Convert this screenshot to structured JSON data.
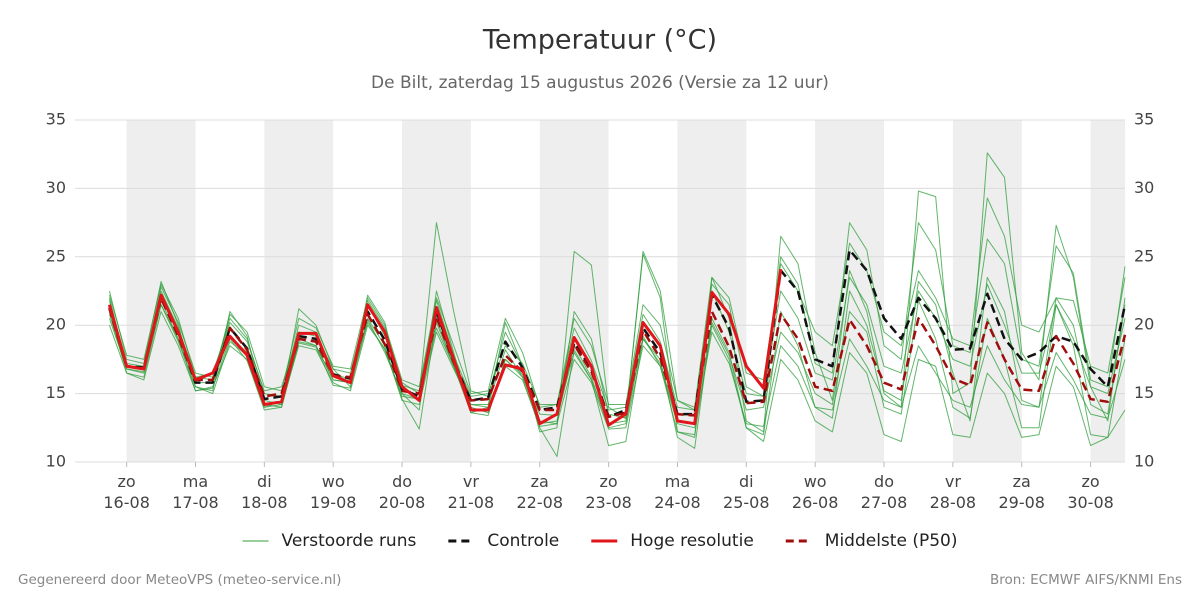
{
  "chart_data": {
    "type": "line",
    "title": "Temperatuur (°C)",
    "subtitle": "De Bilt, zaterdag 15 augustus 2026 (Versie za 12 uur)",
    "footer_left": "Gegenereerd door MeteoVPS (meteo-service.nl)",
    "footer_right": "Bron: ECMWF AIFS/KNMI Ens",
    "x": [
      15.75,
      16,
      16.25,
      16.5,
      16.75,
      17,
      17.25,
      17.5,
      17.75,
      18,
      18.25,
      18.5,
      18.75,
      19,
      19.25,
      19.5,
      19.75,
      20,
      20.25,
      20.5,
      20.75,
      21,
      21.25,
      21.5,
      21.75,
      22,
      22.25,
      22.5,
      22.75,
      23,
      23.25,
      23.5,
      23.75,
      24,
      24.25,
      24.5,
      24.75,
      25,
      25.25,
      25.5,
      25.75,
      26,
      26.25,
      26.5,
      26.75,
      27,
      27.25,
      27.5,
      27.75,
      28,
      28.25,
      28.5,
      28.75,
      29,
      29.25,
      29.5,
      29.75,
      30,
      30.25,
      30.5
    ],
    "xlim": [
      15.25,
      30.5
    ],
    "xticks": [
      {
        "value": 16,
        "label": "zo 16-08"
      },
      {
        "value": 17,
        "label": "ma 17-08"
      },
      {
        "value": 18,
        "label": "di 18-08"
      },
      {
        "value": 19,
        "label": "wo 19-08"
      },
      {
        "value": 20,
        "label": "do 20-08"
      },
      {
        "value": 21,
        "label": "vr 21-08"
      },
      {
        "value": 22,
        "label": "za 22-08"
      },
      {
        "value": 23,
        "label": "zo 23-08"
      },
      {
        "value": 24,
        "label": "ma 24-08"
      },
      {
        "value": 25,
        "label": "di 25-08"
      },
      {
        "value": 26,
        "label": "wo 26-08"
      },
      {
        "value": 27,
        "label": "do 27-08"
      },
      {
        "value": 28,
        "label": "vr 28-08"
      },
      {
        "value": 29,
        "label": "za 29-08"
      },
      {
        "value": 30,
        "label": "zo 30-08"
      }
    ],
    "ylim": [
      10,
      35
    ],
    "yticks": [
      10,
      15,
      20,
      25,
      30,
      35
    ],
    "grid": true,
    "shade_alternate_days": true,
    "legend": "bottom",
    "ensemble": {
      "name": "Verstoorde runs",
      "color": "#2e9e3a",
      "runs": [
        [
          22.5,
          17.5,
          17.2,
          23.2,
          20,
          15.5,
          15.2,
          21,
          19.2,
          14,
          14.5,
          21.2,
          20,
          16.8,
          15.5,
          22.2,
          20.2,
          15,
          13.8,
          22.5,
          18,
          13.6,
          14,
          20.2,
          17,
          12.2,
          12.5,
          25.4,
          24.4,
          14,
          13.2,
          25.2,
          22,
          12.2,
          11.8,
          23.5,
          20.5,
          13,
          12.2,
          26.5,
          24.5,
          18,
          14.5,
          24,
          21,
          15,
          14,
          29.8,
          29.4,
          15,
          15.8,
          32.6,
          30.8,
          18,
          16,
          27.3,
          23.5,
          15.5,
          13,
          22
        ],
        [
          20,
          16.5,
          16,
          21,
          18.5,
          15.2,
          15.5,
          18.5,
          17.5,
          14,
          14.2,
          18.5,
          18.2,
          15.8,
          15.2,
          20,
          18.3,
          14.5,
          14.2,
          19.5,
          16.8,
          14.2,
          14,
          17,
          16,
          12.6,
          12.8,
          17.5,
          15.8,
          12.4,
          12.5,
          18.5,
          17,
          12.8,
          12.5,
          19.5,
          17.2,
          12.8,
          12.6,
          18.5,
          17,
          14,
          13.8,
          19,
          17,
          14.5,
          14,
          18.5,
          16.5,
          14.5,
          14,
          18.5,
          16,
          14.2,
          14,
          18,
          16,
          13.5,
          13.2,
          17.5
        ],
        [
          21.8,
          17.2,
          17,
          22.5,
          19.8,
          16.2,
          16.5,
          20.2,
          18.8,
          15.2,
          15.5,
          19.5,
          19.2,
          16.8,
          16.5,
          21.5,
          19.2,
          15.6,
          15.2,
          21.8,
          17.8,
          14.8,
          15,
          18.5,
          17.2,
          14.2,
          14.2,
          19.8,
          17.4,
          13.8,
          14,
          20.8,
          18.8,
          14,
          13.8,
          22.5,
          19.5,
          15,
          14.8,
          22.5,
          20.5,
          16.5,
          16,
          23.5,
          21.5,
          17,
          16.5,
          22.5,
          20.5,
          17.5,
          17,
          23,
          20,
          16.5,
          16.5,
          21.5,
          19,
          15.5,
          15,
          20.5
        ],
        [
          20.5,
          16.8,
          16.5,
          21.5,
          18.8,
          15.5,
          15,
          18.8,
          17.8,
          14.5,
          14.2,
          18.8,
          18.5,
          16,
          15.8,
          20.2,
          18.2,
          14.8,
          14.6,
          19.8,
          17,
          14.2,
          14.2,
          18.2,
          16.2,
          13.5,
          13.4,
          18,
          16,
          12.8,
          13,
          19,
          17.2,
          13,
          12.8,
          20.2,
          17.8,
          13.8,
          14,
          19.5,
          18,
          15,
          14.2,
          21,
          19.5,
          14,
          13.5,
          21.8,
          19,
          14,
          13.2,
          20.5,
          17.5,
          12.5,
          12.5,
          21.5,
          18.5,
          12,
          11.8,
          19
        ],
        [
          22,
          17,
          16.8,
          22.8,
          20.2,
          16.5,
          16.2,
          20.5,
          19,
          15,
          14.8,
          20,
          19.5,
          16.5,
          16,
          21.8,
          19.8,
          15.8,
          15,
          27.5,
          21,
          15.2,
          14.8,
          19.5,
          17,
          13,
          12.8,
          21,
          19,
          13.5,
          13.2,
          25.4,
          22.5,
          14.5,
          13.8,
          23,
          21.5,
          15.5,
          14.8,
          25,
          23,
          17.2,
          16.5,
          27.5,
          25.5,
          18.5,
          17.5,
          27.5,
          25.5,
          18.5,
          18,
          26.3,
          24.5,
          17.5,
          17,
          25.8,
          23.8,
          16,
          15.5,
          24.3
        ],
        [
          21,
          16.5,
          16.2,
          21.5,
          19,
          15.8,
          15.8,
          19.2,
          18,
          14.2,
          14,
          19,
          18.5,
          16,
          15.8,
          20.5,
          18.5,
          14.6,
          12.4,
          20.5,
          17,
          14,
          13.6,
          17.5,
          16.2,
          12.5,
          10.4,
          18.2,
          16,
          11.2,
          11.5,
          19,
          17.5,
          11.8,
          11,
          20.5,
          18,
          12.5,
          11.5,
          17.5,
          16,
          13,
          12.2,
          18,
          16.5,
          12,
          11.5,
          17.5,
          17,
          12,
          11.8,
          16.5,
          15,
          11.8,
          12,
          17,
          15.5,
          11.2,
          11.8,
          13.8
        ],
        [
          22.2,
          17.8,
          17.5,
          23,
          20.5,
          16.2,
          16,
          20.8,
          19.5,
          15.5,
          15.2,
          20.5,
          19.8,
          17,
          16.8,
          22,
          20,
          16,
          15.5,
          22,
          18.5,
          15,
          15.2,
          20.5,
          18,
          14,
          14.2,
          20.5,
          18.5,
          14.2,
          14.2,
          21.5,
          20,
          14.5,
          14,
          23.5,
          22,
          16.5,
          16,
          24.5,
          22.5,
          19.5,
          18.5,
          26,
          24,
          19.5,
          18.5,
          24,
          22,
          19,
          18.5,
          29.3,
          26.5,
          20,
          19.5,
          22,
          21.8,
          17,
          16.5,
          23.5
        ],
        [
          20.8,
          16.8,
          16.6,
          21.8,
          19,
          15.2,
          15.4,
          19,
          17.4,
          13.8,
          14,
          18.7,
          18.4,
          15.6,
          15.4,
          20.4,
          18,
          15,
          14.6,
          20.2,
          17,
          13.6,
          13.4,
          17.5,
          16.4,
          12.8,
          13,
          18.5,
          16.2,
          12.5,
          12.8,
          19.2,
          17,
          12.2,
          12,
          20,
          17.5,
          12.5,
          12,
          21,
          18.5,
          14,
          13.2,
          22.5,
          20,
          15.2,
          14.5,
          23.2,
          21.5,
          16.5,
          13,
          23.5,
          21,
          14.5,
          14,
          22,
          20,
          14.2,
          13.5,
          21.5
        ]
      ]
    },
    "series": [
      {
        "name": "Controle",
        "color": "#111111",
        "dashed": true,
        "values": [
          21.3,
          17,
          16.9,
          22,
          19.3,
          15.8,
          15.8,
          19.8,
          18.3,
          14.6,
          14.8,
          19.2,
          19,
          16.4,
          16.1,
          21,
          18.9,
          15.3,
          14.8,
          21,
          17.4,
          14.5,
          14.7,
          18.8,
          16.9,
          13.8,
          14,
          18.7,
          16.8,
          13.3,
          13.8,
          19.8,
          18,
          13.5,
          13.5,
          22.2,
          19.8,
          14.4,
          14.5,
          24,
          22.5,
          17.5,
          17,
          25.5,
          24,
          20.5,
          19,
          22,
          20.5,
          18.2,
          18.3,
          22.3,
          19,
          17.5,
          18,
          19.2,
          18.8,
          16.8,
          15.5,
          21.5
        ]
      },
      {
        "name": "Hoge resolutie",
        "color": "#e0161b",
        "dashed": false,
        "values": [
          21.5,
          17,
          16.8,
          22.2,
          19.5,
          16,
          16.5,
          19.2,
          17.8,
          14.2,
          14.4,
          19.4,
          19.4,
          16.3,
          15.8,
          21.5,
          19.5,
          15.5,
          14.5,
          21.3,
          17.5,
          13.8,
          13.8,
          17.1,
          16.8,
          12.8,
          13.5,
          19.1,
          17,
          12.7,
          13.5,
          20.2,
          18.5,
          13,
          12.8,
          22.4,
          20.8,
          17,
          15.4,
          24.1,
          null,
          null,
          null,
          null,
          null,
          null,
          null,
          null,
          null,
          null,
          null,
          null,
          null,
          null,
          null,
          null,
          null,
          null,
          null,
          null
        ]
      },
      {
        "name": "Middelste (P50)",
        "color": "#a00d0d",
        "dashed": true,
        "values": [
          21.2,
          17,
          16.8,
          22,
          19.2,
          16,
          16,
          19.8,
          18.2,
          14.8,
          15,
          19,
          18.8,
          16.3,
          16.2,
          20.8,
          18.6,
          15.2,
          15,
          20.6,
          17.3,
          14.5,
          14.6,
          17.8,
          16.6,
          13.8,
          13.8,
          18.6,
          16.6,
          13.3,
          13.6,
          19.6,
          17.6,
          13.5,
          13.4,
          21,
          18.4,
          14.3,
          14.4,
          20.8,
          19,
          15.5,
          15.2,
          20.4,
          18.5,
          15.8,
          15.3,
          20.5,
          18.5,
          16.1,
          15.6,
          20.2,
          17.5,
          15.3,
          15.2,
          19.2,
          17.2,
          14.6,
          14.4,
          19.3
        ]
      }
    ]
  }
}
